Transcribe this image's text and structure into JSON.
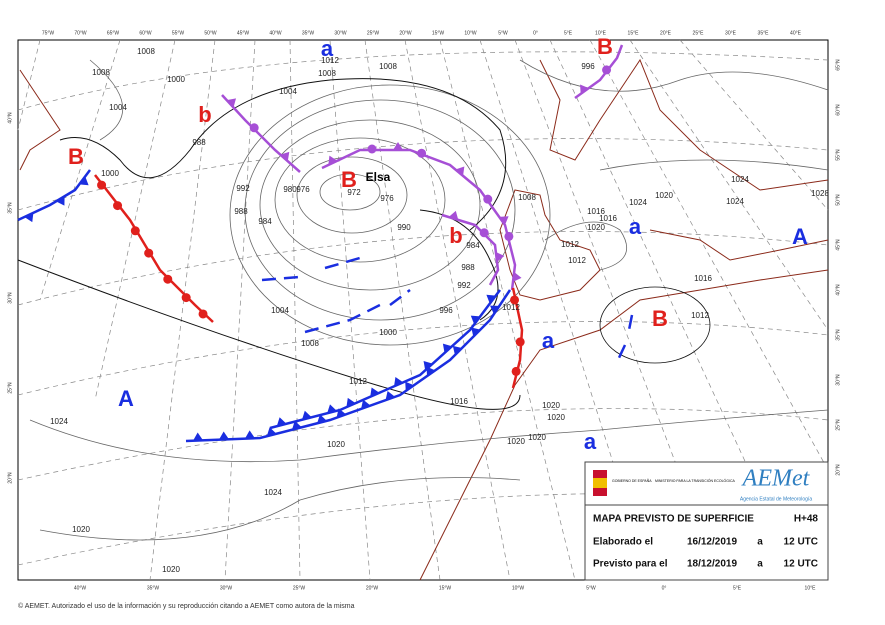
{
  "map": {
    "top_labels": [
      "75°W",
      "70°W",
      "65°W",
      "60°W",
      "55°W",
      "50°W",
      "45°W",
      "40°W",
      "35°W",
      "30°W",
      "25°W",
      "20°W",
      "15°W",
      "10°W",
      "5°W",
      "0°",
      "5°E",
      "10°E",
      "15°E",
      "20°E",
      "25°E",
      "30°E",
      "35°E",
      "40°E"
    ],
    "bottom_labels": [
      "40°W",
      "35°W",
      "30°W",
      "25°W",
      "20°W",
      "15°W",
      "10°W",
      "5°W",
      "0°",
      "5°E",
      "10°E"
    ],
    "left_labels": [
      "40°N",
      "35°N",
      "30°N",
      "25°N",
      "20°N"
    ],
    "right_labels": [
      "65°N",
      "60°N",
      "55°N",
      "50°N",
      "45°N",
      "40°N",
      "35°N",
      "30°N",
      "25°N",
      "20°N"
    ],
    "systems": [
      {
        "label": "B",
        "color": "#e0201c"
      },
      {
        "label": "B",
        "color": "#e0201c"
      },
      {
        "label": "B",
        "color": "#e0201c"
      },
      {
        "label": "B",
        "color": "#e0201c"
      },
      {
        "label": "b",
        "color": "#e0201c"
      },
      {
        "label": "b",
        "color": "#e0201c"
      },
      {
        "label": "A",
        "color": "#1a2ee0"
      },
      {
        "label": "A",
        "color": "#1a2ee0"
      },
      {
        "label": "a",
        "color": "#1a2ee0"
      },
      {
        "label": "a",
        "color": "#1a2ee0"
      },
      {
        "label": "a",
        "color": "#1a2ee0"
      },
      {
        "label": "a",
        "color": "#1a2ee0"
      }
    ],
    "storm_name": "Elsa",
    "isobar_labels": [
      "1008",
      "1000",
      "1008",
      "1004",
      "1004",
      "1008",
      "1012",
      "1008",
      "996",
      "988",
      "1000",
      "992",
      "988",
      "984",
      "980",
      "976",
      "972",
      "976",
      "990",
      "984",
      "988",
      "992",
      "996",
      "1004",
      "1008",
      "1000",
      "1012",
      "1016",
      "1020",
      "1012",
      "1012",
      "1012",
      "1008",
      "1016",
      "1016",
      "1020",
      "1024",
      "1020",
      "1024",
      "1024",
      "1028",
      "1016",
      "1012",
      "1020",
      "1020",
      "1020",
      "1020",
      "1024",
      "1024",
      "1020",
      "1020"
    ]
  },
  "info_box": {
    "gov": "GOBIERNO DE ESPAÑA",
    "ministry": "MINISTERIO PARA LA TRANSICIÓN ECOLÓGICA",
    "agency_logo": "AEMet",
    "agency_name": "Agencia Estatal de Meteorología",
    "title": "MAPA PREVISTO DE SUPERFICIE",
    "lead": "H+48",
    "rows": [
      [
        "Elaborado el",
        "16/12/2019",
        "a",
        "12 UTC"
      ],
      [
        "Previsto para el",
        "18/12/2019",
        "a",
        "12 UTC"
      ]
    ]
  },
  "footer": "© AEMET. Autorizado el uso de la información y su reproducción citando a AEMET como autora de la misma"
}
